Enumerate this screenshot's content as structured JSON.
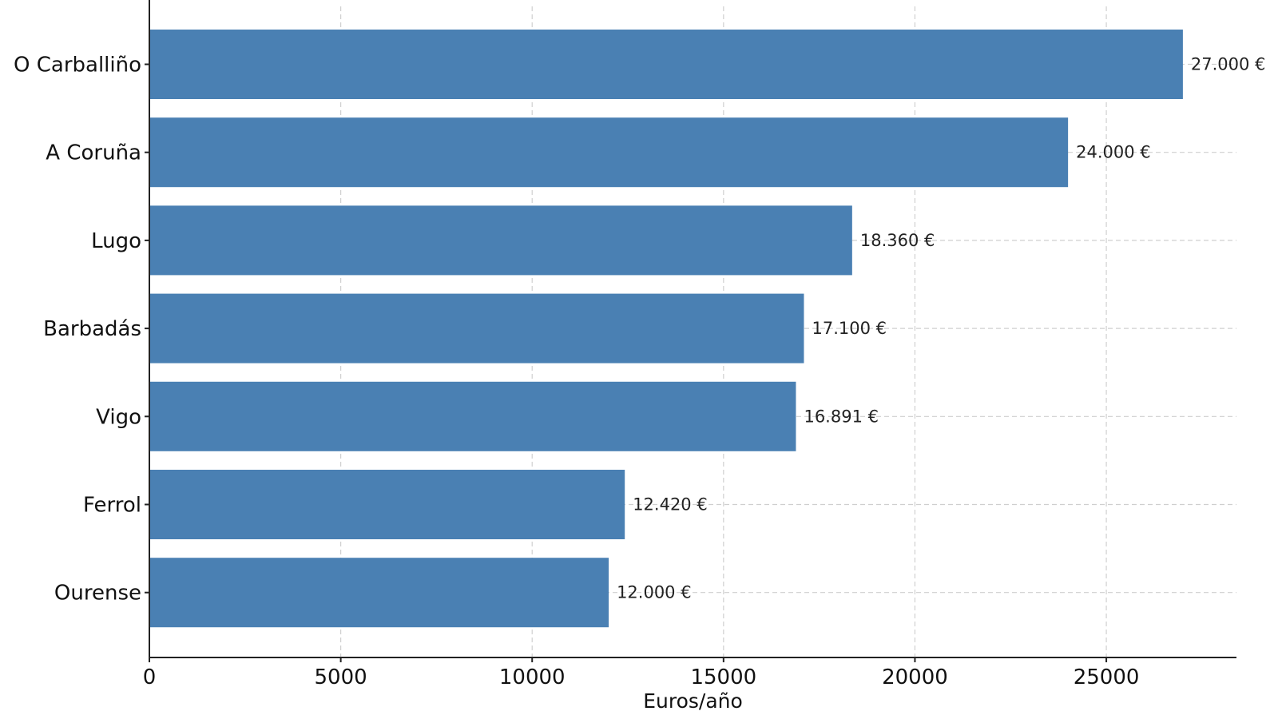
{
  "chart_data": {
    "type": "bar",
    "orientation": "horizontal",
    "categories": [
      "O Carballiño",
      "A Coruña",
      "Lugo",
      "Barbadás",
      "Vigo",
      "Ferrol",
      "Ourense"
    ],
    "values": [
      27000,
      24000,
      18360,
      17100,
      16891,
      12420,
      12000
    ],
    "value_labels": [
      "27.000 €",
      "24.000 €",
      "18.360 €",
      "17.100 €",
      "16.891 €",
      "12.420 €",
      "12.000 €"
    ],
    "title": "",
    "xlabel": "Euros/año",
    "ylabel": "",
    "xlim": [
      0,
      28400
    ],
    "xticks": [
      0,
      5000,
      10000,
      15000,
      20000,
      25000
    ],
    "xtick_labels": [
      "0",
      "5000",
      "10000",
      "15000",
      "20000",
      "25000"
    ],
    "grid": true,
    "colors": {
      "bar": "#4a80b3",
      "grid": "#cfcfcf",
      "axis": "#222222"
    }
  }
}
